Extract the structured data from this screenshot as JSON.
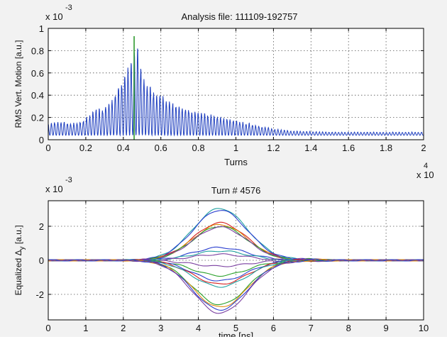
{
  "chart_data": [
    {
      "type": "line",
      "title": "Analysis file:  111109-192757",
      "xlabel": "Turns",
      "ylabel": "RMS Vert. Motion [a.u.]",
      "x_exponent_label": "x 10",
      "x_exponent": "4",
      "y_exponent_label": "x 10",
      "y_exponent": "-3",
      "xlim": [
        0,
        2
      ],
      "ylim": [
        0,
        1
      ],
      "xticks": [
        "0",
        "0.2",
        "0.4",
        "0.6",
        "0.8",
        "1",
        "1.2",
        "1.4",
        "1.6",
        "1.8",
        "2"
      ],
      "yticks": [
        "0",
        "0.2",
        "0.4",
        "0.6",
        "0.8",
        "1"
      ],
      "grid": true,
      "series": [
        {
          "color": "#1f3fbf",
          "envelope_x": [
            0,
            0.05,
            0.1,
            0.15,
            0.2,
            0.25,
            0.3,
            0.35,
            0.4,
            0.45,
            0.47,
            0.5,
            0.55,
            0.6,
            0.65,
            0.7,
            0.8,
            0.9,
            1.0,
            1.1,
            1.2,
            1.3,
            1.4,
            1.5,
            1.6,
            1.7,
            1.8,
            1.9,
            2.0
          ],
          "envelope_y": [
            0.15,
            0.17,
            0.16,
            0.15,
            0.2,
            0.28,
            0.3,
            0.42,
            0.58,
            0.78,
            0.92,
            0.66,
            0.48,
            0.42,
            0.36,
            0.32,
            0.26,
            0.22,
            0.18,
            0.14,
            0.1,
            0.08,
            0.075,
            0.07,
            0.07,
            0.07,
            0.07,
            0.07,
            0.07
          ],
          "floor_y": 0.04,
          "oscillation_period": 0.017
        }
      ],
      "marker_line": {
        "x": 0.4576,
        "color": "#2f9a2f",
        "ymax": 0.93
      }
    },
    {
      "type": "line",
      "title": "Turn # 4576",
      "xlabel": "time [ns]",
      "ylabel": "Equalized  Δ",
      "ylabel_subscript": "y",
      "ylabel_unit": "[a.u.]",
      "y_exponent_label": "x 10",
      "y_exponent": "-3",
      "xlim": [
        0,
        10
      ],
      "ylim": [
        -3.5,
        3.5
      ],
      "xticks": [
        "0",
        "1",
        "2",
        "3",
        "4",
        "5",
        "6",
        "7",
        "8",
        "9",
        "10"
      ],
      "yticks": [
        "-2",
        "0",
        "2"
      ],
      "ytick_values": [
        -2,
        0,
        2
      ],
      "grid": true,
      "pulse_center": 4.58,
      "pulse_sigma": 0.72,
      "series": [
        {
          "amplitude": 3.05,
          "color": "#1fa0a0"
        },
        {
          "amplitude": 2.95,
          "color": "#2a3fcf"
        },
        {
          "amplitude": 2.2,
          "color": "#d62020"
        },
        {
          "amplitude": 2.1,
          "color": "#e08a10"
        },
        {
          "amplitude": 2.0,
          "color": "#28a028"
        },
        {
          "amplitude": 1.95,
          "color": "#7a3fa0"
        },
        {
          "amplitude": 0.75,
          "color": "#2a3fcf"
        },
        {
          "amplitude": 0.55,
          "color": "#1fa0a0"
        },
        {
          "amplitude": 0.35,
          "color": "#7a3fa0"
        },
        {
          "amplitude": -0.35,
          "color": "#7a3fa0"
        },
        {
          "amplitude": -0.9,
          "color": "#28a028"
        },
        {
          "amplitude": -1.2,
          "color": "#2a3fcf"
        },
        {
          "amplitude": -1.4,
          "color": "#d62020"
        },
        {
          "amplitude": -1.55,
          "color": "#1fa0a0"
        },
        {
          "amplitude": -2.6,
          "color": "#28a028"
        },
        {
          "amplitude": -2.75,
          "color": "#e08a10"
        },
        {
          "amplitude": -2.9,
          "color": "#2a3fcf"
        },
        {
          "amplitude": -3.1,
          "color": "#7a3fa0"
        }
      ]
    }
  ]
}
